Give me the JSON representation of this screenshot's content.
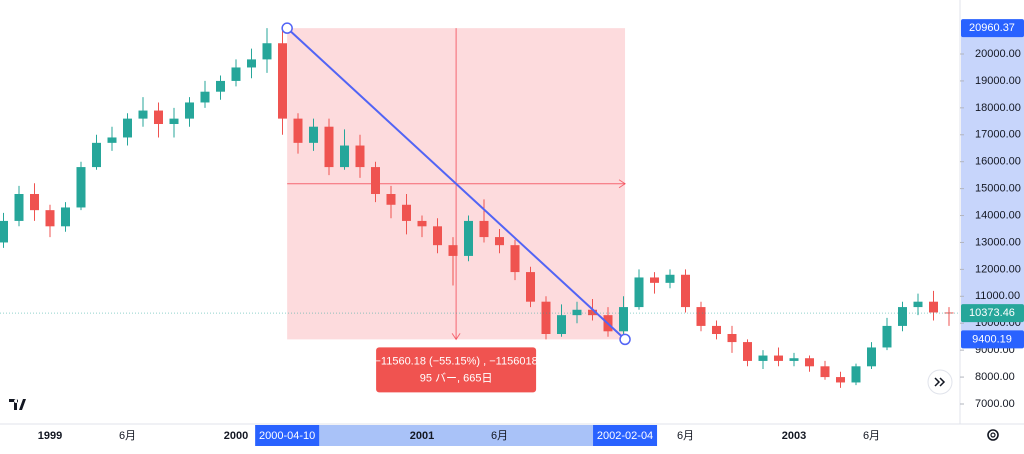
{
  "chart_data": {
    "type": "candlestick",
    "categories": [
      null,
      null,
      null,
      "1999",
      null,
      null,
      null,
      null,
      "6月",
      null,
      null,
      null,
      null,
      null,
      null,
      "2000",
      null,
      null,
      null,
      null,
      null,
      null,
      null,
      null,
      null,
      null,
      null,
      "2001",
      null,
      null,
      null,
      null,
      "6月",
      null,
      null,
      null,
      null,
      null,
      null,
      null,
      null,
      null,
      null,
      null,
      "6月",
      null,
      null,
      null,
      null,
      null,
      null,
      "2003",
      null,
      null,
      null,
      null,
      "6月",
      null,
      null,
      null,
      null,
      null
    ],
    "open": [
      13000,
      13800,
      14800,
      14200,
      13600,
      14300,
      15800,
      16700,
      16900,
      17600,
      17900,
      17400,
      17600,
      18200,
      18600,
      19000,
      19500,
      19800,
      20400,
      17600,
      16700,
      17300,
      15800,
      16600,
      15800,
      14800,
      14400,
      13800,
      13600,
      12900,
      12500,
      13800,
      13200,
      12900,
      11900,
      10800,
      9600,
      10300,
      10500,
      10300,
      9700,
      10600,
      11700,
      11500,
      11800,
      10600,
      9900,
      9600,
      9300,
      8600,
      8800,
      8600,
      8700,
      8400,
      8000,
      7800,
      8400,
      9100,
      9900,
      10600,
      10800,
      10400
    ],
    "high": [
      14100,
      15100,
      15200,
      14400,
      14500,
      16000,
      17000,
      17300,
      17800,
      18400,
      18200,
      18000,
      18400,
      19000,
      19200,
      19800,
      20200,
      20960,
      20900,
      17800,
      17600,
      17600,
      17200,
      17000,
      16000,
      15100,
      14800,
      14000,
      13900,
      13200,
      14000,
      14600,
      13500,
      13100,
      12100,
      11000,
      10700,
      10800,
      10900,
      10600,
      11000,
      12000,
      11900,
      12000,
      12000,
      10800,
      10100,
      9900,
      9400,
      9000,
      9100,
      8900,
      8800,
      8600,
      8200,
      8500,
      9300,
      10200,
      10800,
      11100,
      11200,
      10600
    ],
    "low": [
      12800,
      13600,
      13800,
      13200,
      13400,
      14200,
      15700,
      16400,
      16600,
      17300,
      16900,
      16900,
      17300,
      18000,
      18300,
      18800,
      19100,
      19300,
      17000,
      16300,
      16400,
      15500,
      15700,
      15400,
      14500,
      13900,
      13300,
      13200,
      12600,
      11400,
      12300,
      13000,
      12600,
      11600,
      10600,
      9400,
      9500,
      10000,
      10100,
      9500,
      9400,
      10500,
      11100,
      11300,
      10400,
      9700,
      9400,
      8900,
      8400,
      8300,
      8400,
      8400,
      8200,
      7900,
      7600,
      7700,
      8300,
      9000,
      9700,
      10300,
      10100,
      9900
    ],
    "close": [
      13800,
      14800,
      14200,
      13600,
      14300,
      15800,
      16700,
      16900,
      17600,
      17900,
      17400,
      17600,
      18200,
      18600,
      19000,
      19500,
      19800,
      20400,
      17600,
      16700,
      17300,
      15800,
      16600,
      15800,
      14800,
      14400,
      13800,
      13600,
      12900,
      12500,
      13800,
      13200,
      12900,
      11900,
      10800,
      9600,
      10300,
      10500,
      10300,
      9700,
      10600,
      11700,
      11500,
      11800,
      10600,
      9900,
      9600,
      9300,
      8600,
      8800,
      8600,
      8700,
      8400,
      8000,
      7800,
      8400,
      9100,
      9900,
      10600,
      10800,
      10400,
      10373.46
    ],
    "up_color": "#26a69a",
    "down_color": "#ef5350",
    "ylim": [
      6257,
      22006
    ],
    "yticks": [
      {
        "value": 7000,
        "label": "7000.00"
      },
      {
        "value": 8000,
        "label": "8000.00"
      },
      {
        "value": 9000,
        "label": "9000.00"
      },
      {
        "value": 10000,
        "label": "10000.00"
      },
      {
        "value": 11000,
        "label": "11000.00"
      },
      {
        "value": 12000,
        "label": "12000.00"
      },
      {
        "value": 13000,
        "label": "13000.00"
      },
      {
        "value": 14000,
        "label": "14000.00"
      },
      {
        "value": 15000,
        "label": "15000.00"
      },
      {
        "value": 16000,
        "label": "16000.00"
      },
      {
        "value": 17000,
        "label": "17000.00"
      },
      {
        "value": 18000,
        "label": "18000.00"
      },
      {
        "value": 19000,
        "label": "19000.00"
      },
      {
        "value": 20000,
        "label": "20000.00"
      }
    ],
    "grid": false,
    "last_price": 10373.46,
    "measure": {
      "start_date": "2000-04-10",
      "end_date": "2002-02-04",
      "start_price": 20960.37,
      "end_price": 9400.19,
      "change_text": "−11560.18 (−55.15%) , −1156018",
      "bars_text": "95 バー, 665日"
    }
  }
}
